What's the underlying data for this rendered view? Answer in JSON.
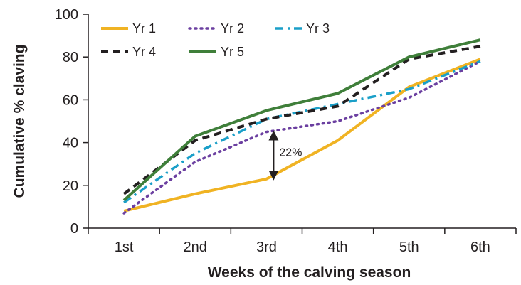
{
  "chart_data": {
    "type": "line",
    "title": "",
    "xlabel": "Weeks of the calving season",
    "ylabel": "Cumulative % claving",
    "categories": [
      "1st",
      "2nd",
      "3rd",
      "4th",
      "5th",
      "6th"
    ],
    "ylim": [
      0,
      100
    ],
    "yticks": [
      0,
      20,
      40,
      60,
      80,
      100
    ],
    "grid": false,
    "legend_position": "top-left",
    "series": [
      {
        "name": "Yr 1",
        "values": [
          8,
          16,
          23,
          41,
          66,
          79
        ],
        "color": "#f0b323",
        "dash": "solid"
      },
      {
        "name": "Yr 2",
        "values": [
          7,
          31,
          45,
          50,
          61,
          78
        ],
        "color": "#6b3fa0",
        "dash": "dotted"
      },
      {
        "name": "Yr 3",
        "values": [
          12,
          35,
          51,
          58,
          65,
          78
        ],
        "color": "#1a9fc8",
        "dash": "dashdot"
      },
      {
        "name": "Yr 4",
        "values": [
          16,
          41,
          51,
          57,
          79,
          85
        ],
        "color": "#231f20",
        "dash": "dashed"
      },
      {
        "name": "Yr 5",
        "values": [
          13,
          43,
          55,
          63,
          80,
          88
        ],
        "color": "#3f7f3a",
        "dash": "solid"
      }
    ],
    "annotations": [
      {
        "text": "22%",
        "category": "3rd",
        "y_from": 23,
        "y_to": 45,
        "type": "double-arrow"
      }
    ]
  }
}
